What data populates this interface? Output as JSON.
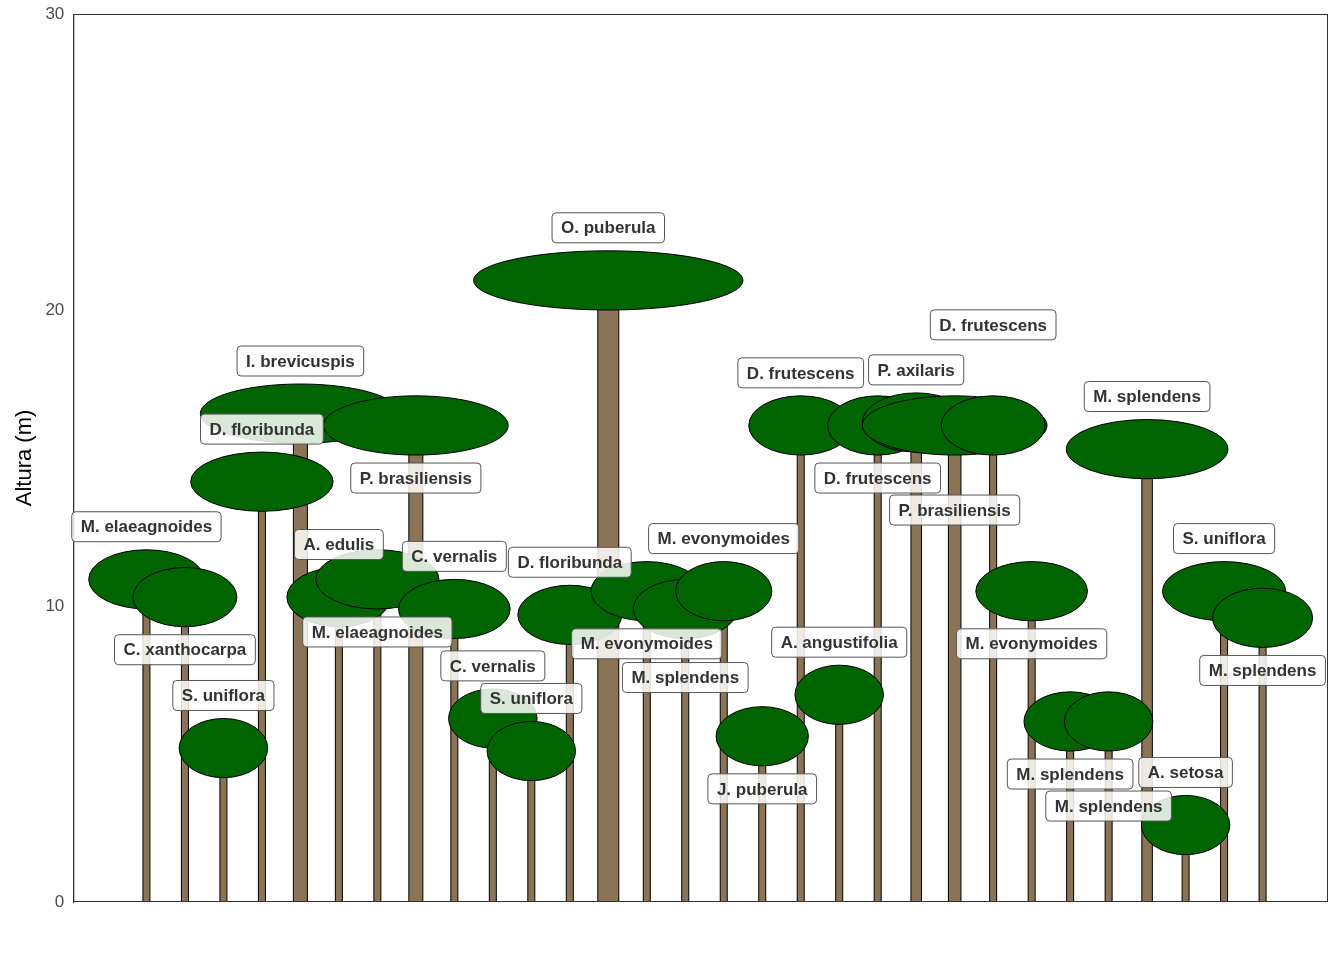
{
  "chart_data": {
    "type": "profile",
    "y_label": "Altura (m)",
    "ylim": [
      0,
      30
    ],
    "yticks": [
      0,
      10,
      20,
      30
    ],
    "xlim": [
      -0.9,
      31.7
    ],
    "tick_labels": "y",
    "grid": false,
    "trees": [
      {
        "name": "M. elaeagnoides",
        "x": 1,
        "height": 11.9,
        "crown_base": 9.9,
        "crown_width": 3.0,
        "dbh": 10
      },
      {
        "name": "C. xanthocarpa",
        "x": 2,
        "height": 11.3,
        "crown_base": 9.3,
        "crown_width": 2.7,
        "dbh": 10
      },
      {
        "name": "S. uniflora",
        "x": 3,
        "height": 6.2,
        "crown_base": 4.2,
        "crown_width": 2.3,
        "dbh": 10
      },
      {
        "name": "D. floribunda",
        "x": 4,
        "height": 15.2,
        "crown_base": 13.2,
        "crown_width": 3.7,
        "dbh": 10
      },
      {
        "name": "I. brevicuspis",
        "x": 5,
        "height": 17.5,
        "crown_base": 15.5,
        "crown_width": 5.2,
        "dbh": 20
      },
      {
        "name": "A. edulis",
        "x": 6,
        "height": 11.3,
        "crown_base": 9.3,
        "crown_width": 2.7,
        "dbh": 10
      },
      {
        "name": "M. elaeagnoides",
        "x": 7,
        "height": 11.9,
        "crown_base": 9.9,
        "crown_width": 3.2,
        "dbh": 10
      },
      {
        "name": "P. brasiliensis",
        "x": 8,
        "height": 17.1,
        "crown_base": 15.1,
        "crown_width": 4.8,
        "dbh": 20
      },
      {
        "name": "C. vernalis",
        "x": 9,
        "height": 10.9,
        "crown_base": 8.9,
        "crown_width": 2.9,
        "dbh": 10
      },
      {
        "name": "C. vernalis",
        "x": 10,
        "height": 7.2,
        "crown_base": 5.2,
        "crown_width": 2.3,
        "dbh": 10
      },
      {
        "name": "S. uniflora",
        "x": 11,
        "height": 6.1,
        "crown_base": 4.1,
        "crown_width": 2.3,
        "dbh": 10
      },
      {
        "name": "D. floribunda",
        "x": 12,
        "height": 10.7,
        "crown_base": 8.7,
        "crown_width": 2.7,
        "dbh": 10
      },
      {
        "name": "O. puberula",
        "x": 13,
        "height": 22.0,
        "crown_base": 20.0,
        "crown_width": 7.0,
        "dbh": 30
      },
      {
        "name": "M. evonymoides",
        "x": 14,
        "height": 11.5,
        "crown_base": 9.5,
        "crown_width": 2.9,
        "dbh": 10
      },
      {
        "name": "M. splendens",
        "x": 15,
        "height": 10.9,
        "crown_base": 8.9,
        "crown_width": 2.7,
        "dbh": 10
      },
      {
        "name": "M. evonymoides",
        "x": 16,
        "height": 11.5,
        "crown_base": 9.5,
        "crown_width": 2.5,
        "dbh": 10
      },
      {
        "name": "J. puberula",
        "x": 17,
        "height": 6.6,
        "crown_base": 4.6,
        "crown_width": 2.4,
        "dbh": 10
      },
      {
        "name": "D. frutescens",
        "x": 18,
        "height": 17.1,
        "crown_base": 15.1,
        "crown_width": 2.7,
        "dbh": 10
      },
      {
        "name": "A. angustifolia",
        "x": 19,
        "height": 8.0,
        "crown_base": 6.0,
        "crown_width": 2.3,
        "dbh": 10
      },
      {
        "name": "D. frutescens",
        "x": 20,
        "height": 17.1,
        "crown_base": 15.1,
        "crown_width": 2.6,
        "dbh": 10
      },
      {
        "name": "P. axilaris",
        "x": 21,
        "height": 17.2,
        "crown_base": 15.2,
        "crown_width": 2.8,
        "dbh": 15
      },
      {
        "name": "P. brasiliensis",
        "x": 22,
        "height": 17.1,
        "crown_base": 15.1,
        "crown_width": 4.8,
        "dbh": 18
      },
      {
        "name": "D. frutescens",
        "x": 23,
        "height": 17.1,
        "crown_base": 15.1,
        "crown_width": 2.7,
        "dbh": 10
      },
      {
        "name": "M. evonymoides",
        "x": 24,
        "height": 11.5,
        "crown_base": 9.5,
        "crown_width": 2.9,
        "dbh": 10
      },
      {
        "name": "M. splendens",
        "x": 25,
        "height": 7.1,
        "crown_base": 5.1,
        "crown_width": 2.4,
        "dbh": 10
      },
      {
        "name": "M. splendens",
        "x": 26,
        "height": 7.1,
        "crown_base": 5.1,
        "crown_width": 2.3,
        "dbh": 10
      },
      {
        "name": "M. splendens",
        "x": 27,
        "height": 16.3,
        "crown_base": 14.3,
        "crown_width": 4.2,
        "dbh": 15
      },
      {
        "name": "A. setosa",
        "x": 28,
        "height": 3.6,
        "crown_base": 1.6,
        "crown_width": 2.3,
        "dbh": 10
      },
      {
        "name": "S. uniflora",
        "x": 29,
        "height": 11.5,
        "crown_base": 9.5,
        "crown_width": 3.2,
        "dbh": 10
      },
      {
        "name": "M. splendens",
        "x": 30,
        "height": 10.6,
        "crown_base": 8.6,
        "crown_width": 2.6,
        "dbh": 10
      }
    ]
  }
}
